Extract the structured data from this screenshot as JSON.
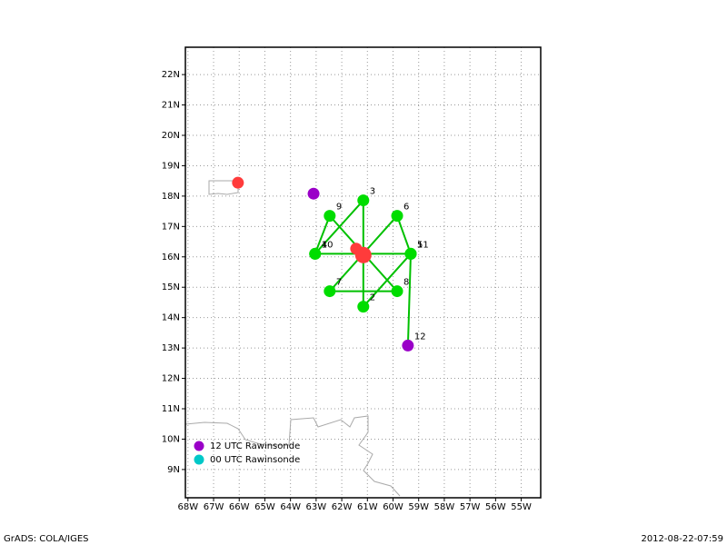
{
  "map": {
    "xlim": [
      -68.1,
      -54.24
    ],
    "ylim": [
      8.07,
      22.9
    ],
    "xticks": [
      {
        "value": -68,
        "label": "68W"
      },
      {
        "value": -67,
        "label": "67W"
      },
      {
        "value": -66,
        "label": "66W"
      },
      {
        "value": -65,
        "label": "65W"
      },
      {
        "value": -64,
        "label": "64W"
      },
      {
        "value": -63,
        "label": "63W"
      },
      {
        "value": -62,
        "label": "62W"
      },
      {
        "value": -61,
        "label": "61W"
      },
      {
        "value": -60,
        "label": "60W"
      },
      {
        "value": -59,
        "label": "59W"
      },
      {
        "value": -58,
        "label": "58W"
      },
      {
        "value": -57,
        "label": "57W"
      },
      {
        "value": -56,
        "label": "56W"
      },
      {
        "value": -55,
        "label": "55W"
      }
    ],
    "yticks": [
      {
        "value": 9,
        "label": "9N"
      },
      {
        "value": 10,
        "label": "10N"
      },
      {
        "value": 11,
        "label": "11N"
      },
      {
        "value": 12,
        "label": "12N"
      },
      {
        "value": 13,
        "label": "13N"
      },
      {
        "value": 14,
        "label": "14N"
      },
      {
        "value": 15,
        "label": "15N"
      },
      {
        "value": 16,
        "label": "16N"
      },
      {
        "value": 17,
        "label": "17N"
      },
      {
        "value": 18,
        "label": "18N"
      },
      {
        "value": 19,
        "label": "19N"
      },
      {
        "value": 20,
        "label": "20N"
      },
      {
        "value": 21,
        "label": "21N"
      },
      {
        "value": 22,
        "label": "22N"
      }
    ],
    "drops": [
      {
        "label": "1",
        "lon": -59.31,
        "lat": 16.1,
        "color": "#00dd00"
      },
      {
        "label": "2",
        "lon": -61.16,
        "lat": 14.36,
        "color": "#00dd00"
      },
      {
        "label": "3",
        "lon": -61.16,
        "lat": 17.86,
        "color": "#00dd00"
      },
      {
        "label": "4",
        "lon": -63.04,
        "lat": 16.1,
        "color": "#00dd00"
      },
      {
        "label": "5",
        "lon": -59.31,
        "lat": 16.1,
        "color": "#00dd00"
      },
      {
        "label": "6",
        "lon": -59.84,
        "lat": 17.35,
        "color": "#00dd00"
      },
      {
        "label": "7",
        "lon": -62.47,
        "lat": 14.87,
        "color": "#00dd00"
      },
      {
        "label": "8",
        "lon": -59.84,
        "lat": 14.87,
        "color": "#00dd00"
      },
      {
        "label": "9",
        "lon": -62.47,
        "lat": 17.35,
        "color": "#00dd00"
      },
      {
        "label": "10",
        "lon": -63.04,
        "lat": 16.1,
        "color": "#00dd00"
      },
      {
        "label": "11",
        "lon": -59.31,
        "lat": 16.1,
        "color": "#00dd00"
      },
      {
        "label": "12",
        "lon": -59.42,
        "lat": 13.08,
        "color": "#9a00c8"
      }
    ],
    "track_color": "#00c000",
    "rawinsondes": [
      {
        "lon": -63.1,
        "lat": 18.08,
        "color": "#9a00c8"
      }
    ],
    "storm_positions": [
      {
        "lon": -66.05,
        "lat": 18.44
      },
      {
        "lon": -61.44,
        "lat": 16.27
      },
      {
        "lon": -61.16,
        "lat": 16.06
      }
    ],
    "storm_color": "#ff3b3b",
    "legend": [
      {
        "label": "12 UTC Rawinsonde",
        "color": "#9a00c8"
      },
      {
        "label": "00 UTC Rawinsonde",
        "color": "#00c8c8"
      }
    ],
    "footer_left": "GrADS: COLA/IGES",
    "footer_right": "2012-08-22-07:59"
  }
}
